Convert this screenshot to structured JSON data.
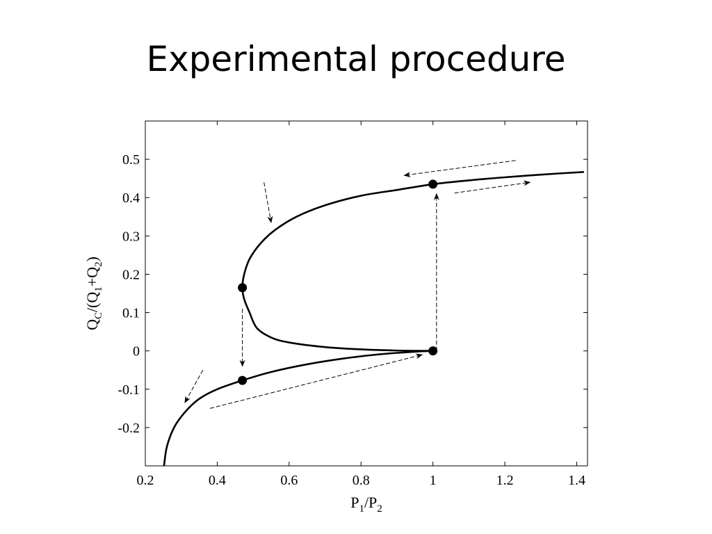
{
  "slide": {
    "title": "Experimental procedure"
  },
  "chart_data": {
    "type": "line",
    "xlabel": {
      "main": "P",
      "sub1": "1",
      "slash": "/P",
      "sub2": "2"
    },
    "ylabel": {
      "a": "Q",
      "b": "C",
      "c": "/(Q",
      "d": "1",
      "e": "+Q",
      "f": "2",
      "g": ")"
    },
    "xlim": [
      0.2,
      1.43
    ],
    "ylim": [
      -0.3,
      0.6
    ],
    "x_ticks": [
      0.2,
      0.4,
      0.6,
      0.8,
      1.0,
      1.2,
      1.4
    ],
    "x_tick_labels": [
      "0.2",
      "0.4",
      "0.6",
      "0.8",
      "1",
      "1.2",
      "1.4"
    ],
    "y_ticks": [
      -0.2,
      -0.1,
      0,
      0.1,
      0.2,
      0.3,
      0.4,
      0.5
    ],
    "y_tick_labels": [
      "-0.2",
      "-0.1",
      "0",
      "0.1",
      "0.2",
      "0.3",
      "0.4",
      "0.5"
    ],
    "grid": false,
    "series": [
      {
        "style": "solid",
        "points": [
          [
            0.252,
            -0.3
          ],
          [
            0.26,
            -0.25
          ],
          [
            0.28,
            -0.2
          ],
          [
            0.31,
            -0.16
          ],
          [
            0.35,
            -0.125
          ],
          [
            0.4,
            -0.1
          ],
          [
            0.47,
            -0.077
          ],
          [
            0.55,
            -0.055
          ],
          [
            0.65,
            -0.035
          ],
          [
            0.75,
            -0.02
          ],
          [
            0.85,
            -0.009
          ],
          [
            0.95,
            -0.002
          ],
          [
            1.0,
            0
          ]
        ]
      },
      {
        "style": "solid",
        "points": [
          [
            1.0,
            0
          ],
          [
            0.9,
            0.001
          ],
          [
            0.8,
            0.004
          ],
          [
            0.7,
            0.01
          ],
          [
            0.6,
            0.022
          ],
          [
            0.55,
            0.035
          ],
          [
            0.51,
            0.06
          ],
          [
            0.49,
            0.1
          ],
          [
            0.475,
            0.135
          ],
          [
            0.47,
            0.165
          ],
          [
            0.475,
            0.2
          ],
          [
            0.49,
            0.24
          ],
          [
            0.52,
            0.28
          ],
          [
            0.56,
            0.315
          ],
          [
            0.62,
            0.35
          ],
          [
            0.7,
            0.38
          ],
          [
            0.8,
            0.405
          ],
          [
            0.9,
            0.42
          ],
          [
            1.0,
            0.435
          ],
          [
            1.1,
            0.445
          ],
          [
            1.2,
            0.453
          ],
          [
            1.3,
            0.46
          ],
          [
            1.42,
            0.467
          ]
        ]
      }
    ],
    "markers": [
      {
        "x": 0.47,
        "y": 0.165
      },
      {
        "x": 0.47,
        "y": -0.077
      },
      {
        "x": 1.0,
        "y": 0.0
      },
      {
        "x": 1.0,
        "y": 0.435
      }
    ],
    "annotations": [
      {
        "type": "arrow",
        "style": "dashed",
        "from": [
          0.47,
          0.11
        ],
        "to": [
          0.47,
          -0.04
        ]
      },
      {
        "type": "arrow",
        "style": "dashed",
        "from": [
          1.01,
          0.0
        ],
        "to": [
          1.01,
          0.41
        ]
      },
      {
        "type": "arrow",
        "style": "dashed",
        "from": [
          1.23,
          0.497
        ],
        "to": [
          0.92,
          0.458
        ]
      },
      {
        "type": "arrow",
        "style": "dashed",
        "from": [
          0.53,
          0.44
        ],
        "to": [
          0.55,
          0.335
        ]
      },
      {
        "type": "arrow",
        "style": "dashed",
        "from": [
          1.06,
          0.412
        ],
        "to": [
          1.27,
          0.44
        ]
      },
      {
        "type": "arrow",
        "style": "dashed",
        "from": [
          0.36,
          -0.05
        ],
        "to": [
          0.31,
          -0.135
        ]
      },
      {
        "type": "arrow",
        "style": "dashed",
        "from": [
          0.38,
          -0.15
        ],
        "to": [
          0.97,
          -0.01
        ]
      }
    ]
  }
}
